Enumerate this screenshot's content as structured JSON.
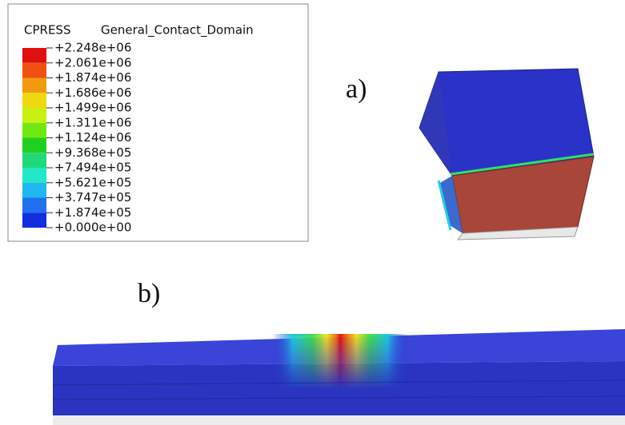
{
  "legend": {
    "variable": "CPRESS",
    "domain": "General_Contact_Domain",
    "levels": [
      "+2.248e+06",
      "+2.061e+06",
      "+1.874e+06",
      "+1.686e+06",
      "+1.499e+06",
      "+1.311e+06",
      "+1.124e+06",
      "+9.368e+05",
      "+7.494e+05",
      "+5.621e+05",
      "+3.747e+05",
      "+1.874e+05",
      "+0.000e+00"
    ]
  },
  "labels": {
    "a": "a)",
    "b": "b)"
  }
}
